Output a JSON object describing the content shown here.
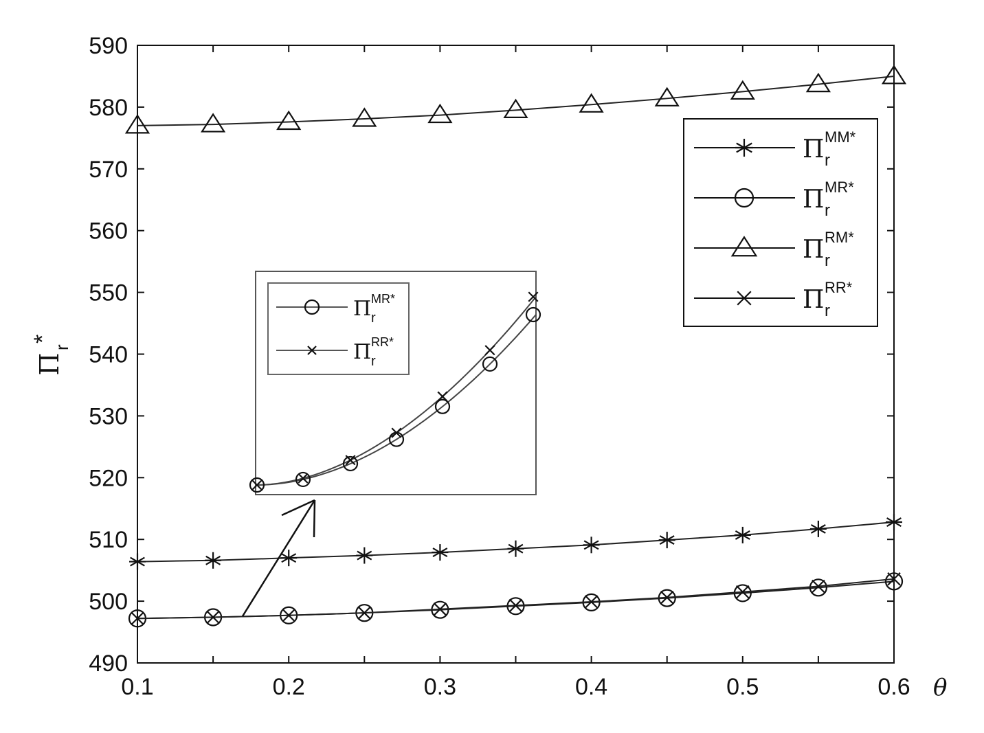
{
  "chart_data": {
    "type": "line",
    "xlabel": "θ",
    "ylabel": {
      "base": "Π",
      "sub": "r",
      "sup": "*"
    },
    "xlim": [
      0.1,
      0.6
    ],
    "ylim": [
      490,
      590
    ],
    "x_ticks": [
      "0.1",
      "0.2",
      "0.3",
      "0.4",
      "0.5",
      "0.6"
    ],
    "y_ticks": [
      "490",
      "500",
      "510",
      "520",
      "530",
      "540",
      "550",
      "560",
      "570",
      "580",
      "590"
    ],
    "grid": false,
    "legend_position": "top-right",
    "x": [
      0.1,
      0.15,
      0.2,
      0.25,
      0.3,
      0.35,
      0.4,
      0.45,
      0.5,
      0.55,
      0.6
    ],
    "series": [
      {
        "name": "MM*",
        "marker": "asterisk",
        "values": [
          506.4,
          506.6,
          507.0,
          507.4,
          507.9,
          508.5,
          509.1,
          509.9,
          510.7,
          511.7,
          512.8
        ]
      },
      {
        "name": "MR*",
        "marker": "circle",
        "values": [
          497.2,
          497.4,
          497.7,
          498.1,
          498.6,
          499.2,
          499.8,
          500.5,
          501.3,
          502.2,
          503.2
        ]
      },
      {
        "name": "RM*",
        "marker": "triangle",
        "values": [
          577.0,
          577.2,
          577.6,
          578.1,
          578.7,
          579.5,
          580.4,
          581.4,
          582.5,
          583.7,
          585.0
        ]
      },
      {
        "name": "RR*",
        "marker": "x",
        "values": [
          497.2,
          497.4,
          497.7,
          498.1,
          498.7,
          499.3,
          499.9,
          500.6,
          501.5,
          502.4,
          503.6
        ]
      }
    ],
    "legend": [
      {
        "base": "Π",
        "sub": "r",
        "sup": "MM*"
      },
      {
        "base": "Π",
        "sub": "r",
        "sup": "MR*"
      },
      {
        "base": "Π",
        "sub": "r",
        "sup": "RM*"
      },
      {
        "base": "Π",
        "sub": "r",
        "sup": "RR*"
      }
    ],
    "inset": {
      "description_hidden": true,
      "legend": [
        {
          "base": "Π",
          "sub": "r",
          "sup": "MR*"
        },
        {
          "base": "Π",
          "sub": "r",
          "sup": "RR*"
        }
      ]
    }
  }
}
